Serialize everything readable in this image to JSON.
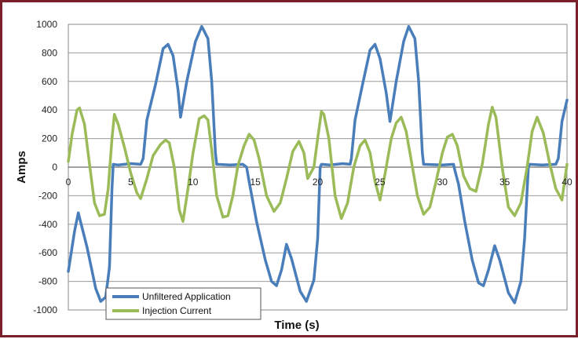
{
  "chart_data": {
    "type": "line",
    "title": "",
    "xlabel": "Time (s)",
    "ylabel": "Amps",
    "xlim": [
      0,
      40
    ],
    "ylim": [
      -1000,
      1000
    ],
    "x_ticks": [
      "0",
      "5",
      "10",
      "15",
      "20",
      "25",
      "30",
      "35",
      "40"
    ],
    "y_ticks": [
      "-1000",
      "-800",
      "-600",
      "-400",
      "-200",
      "0",
      "200",
      "400",
      "600",
      "800",
      "1000"
    ],
    "grid": "horizontal",
    "legend_position": "bottom-left",
    "series": [
      {
        "name": "Unfiltered Application",
        "color": "#4a7ebb",
        "points": [
          [
            0,
            -730
          ],
          [
            0.5,
            -450
          ],
          [
            0.8,
            -320
          ],
          [
            1.5,
            -560
          ],
          [
            2.2,
            -850
          ],
          [
            2.6,
            -940
          ],
          [
            3.0,
            -910
          ],
          [
            3.3,
            -700
          ],
          [
            3.5,
            -150
          ],
          [
            3.6,
            20
          ],
          [
            4,
            15
          ],
          [
            5,
            25
          ],
          [
            5.8,
            20
          ],
          [
            6.0,
            60
          ],
          [
            6.3,
            330
          ],
          [
            7,
            580
          ],
          [
            7.6,
            830
          ],
          [
            8.0,
            860
          ],
          [
            8.4,
            780
          ],
          [
            8.8,
            540
          ],
          [
            9.0,
            350
          ],
          [
            9.5,
            600
          ],
          [
            10.2,
            880
          ],
          [
            10.7,
            985
          ],
          [
            11.2,
            900
          ],
          [
            11.5,
            600
          ],
          [
            11.8,
            100
          ],
          [
            11.9,
            20
          ],
          [
            13,
            15
          ],
          [
            14,
            20
          ],
          [
            14.3,
            0
          ],
          [
            14.5,
            -100
          ],
          [
            15.1,
            -380
          ],
          [
            15.8,
            -650
          ],
          [
            16.3,
            -800
          ],
          [
            16.7,
            -830
          ],
          [
            17.1,
            -720
          ],
          [
            17.5,
            -540
          ],
          [
            17.9,
            -640
          ],
          [
            18.6,
            -870
          ],
          [
            19.1,
            -940
          ],
          [
            19.7,
            -790
          ],
          [
            20,
            -500
          ],
          [
            20.2,
            0
          ],
          [
            20.3,
            20
          ],
          [
            21,
            15
          ],
          [
            22,
            25
          ],
          [
            22.6,
            20
          ],
          [
            22.7,
            60
          ],
          [
            23,
            330
          ],
          [
            23.6,
            580
          ],
          [
            24.2,
            820
          ],
          [
            24.6,
            860
          ],
          [
            25.0,
            760
          ],
          [
            25.5,
            520
          ],
          [
            25.8,
            320
          ],
          [
            26.3,
            600
          ],
          [
            26.9,
            880
          ],
          [
            27.3,
            985
          ],
          [
            27.8,
            900
          ],
          [
            28.1,
            600
          ],
          [
            28.4,
            100
          ],
          [
            28.5,
            20
          ],
          [
            30,
            15
          ],
          [
            30.9,
            20
          ],
          [
            31.0,
            -20
          ],
          [
            31.3,
            -120
          ],
          [
            31.8,
            -380
          ],
          [
            32.4,
            -650
          ],
          [
            32.9,
            -810
          ],
          [
            33.3,
            -830
          ],
          [
            33.7,
            -720
          ],
          [
            34.2,
            -550
          ],
          [
            34.6,
            -650
          ],
          [
            35.3,
            -880
          ],
          [
            35.8,
            -950
          ],
          [
            36.3,
            -800
          ],
          [
            36.6,
            -500
          ],
          [
            36.9,
            0
          ],
          [
            37.0,
            20
          ],
          [
            38,
            15
          ],
          [
            39.1,
            20
          ],
          [
            39.3,
            60
          ],
          [
            39.6,
            320
          ],
          [
            40,
            470
          ]
        ]
      },
      {
        "name": "Injection Current",
        "color": "#9bbb59",
        "points": [
          [
            0,
            40
          ],
          [
            0.3,
            230
          ],
          [
            0.7,
            400
          ],
          [
            0.9,
            415
          ],
          [
            1.3,
            300
          ],
          [
            1.7,
            20
          ],
          [
            2.1,
            -250
          ],
          [
            2.5,
            -340
          ],
          [
            2.9,
            -330
          ],
          [
            3.2,
            -150
          ],
          [
            3.5,
            200
          ],
          [
            3.7,
            370
          ],
          [
            4.0,
            300
          ],
          [
            4.5,
            140
          ],
          [
            5.0,
            -40
          ],
          [
            5.5,
            -180
          ],
          [
            5.8,
            -220
          ],
          [
            6.3,
            -80
          ],
          [
            6.8,
            80
          ],
          [
            7.4,
            160
          ],
          [
            7.8,
            190
          ],
          [
            8.1,
            170
          ],
          [
            8.5,
            0
          ],
          [
            8.9,
            -300
          ],
          [
            9.2,
            -380
          ],
          [
            9.6,
            -150
          ],
          [
            10.0,
            100
          ],
          [
            10.5,
            340
          ],
          [
            10.9,
            360
          ],
          [
            11.2,
            330
          ],
          [
            11.5,
            120
          ],
          [
            11.9,
            -200
          ],
          [
            12.4,
            -350
          ],
          [
            12.8,
            -340
          ],
          [
            13.2,
            -200
          ],
          [
            13.6,
            10
          ],
          [
            14.1,
            150
          ],
          [
            14.5,
            230
          ],
          [
            14.9,
            190
          ],
          [
            15.3,
            60
          ],
          [
            15.9,
            -200
          ],
          [
            16.5,
            -310
          ],
          [
            17.0,
            -250
          ],
          [
            17.5,
            -80
          ],
          [
            18.0,
            110
          ],
          [
            18.5,
            180
          ],
          [
            18.9,
            100
          ],
          [
            19.2,
            -80
          ],
          [
            19.7,
            0
          ],
          [
            20.0,
            200
          ],
          [
            20.3,
            390
          ],
          [
            20.5,
            370
          ],
          [
            20.9,
            200
          ],
          [
            21.4,
            -200
          ],
          [
            21.9,
            -360
          ],
          [
            22.4,
            -250
          ],
          [
            22.9,
            0
          ],
          [
            23.4,
            150
          ],
          [
            23.8,
            190
          ],
          [
            24.2,
            100
          ],
          [
            24.6,
            -100
          ],
          [
            25.0,
            -230
          ],
          [
            25.4,
            -50
          ],
          [
            25.9,
            200
          ],
          [
            26.3,
            310
          ],
          [
            26.7,
            350
          ],
          [
            27.1,
            250
          ],
          [
            27.5,
            50
          ],
          [
            28.0,
            -200
          ],
          [
            28.5,
            -330
          ],
          [
            29.0,
            -280
          ],
          [
            29.5,
            -100
          ],
          [
            30.0,
            100
          ],
          [
            30.4,
            210
          ],
          [
            30.8,
            230
          ],
          [
            31.2,
            150
          ],
          [
            31.7,
            -60
          ],
          [
            32.2,
            -150
          ],
          [
            32.7,
            -170
          ],
          [
            33.2,
            20
          ],
          [
            33.7,
            300
          ],
          [
            34.0,
            420
          ],
          [
            34.3,
            350
          ],
          [
            34.8,
            0
          ],
          [
            35.3,
            -280
          ],
          [
            35.8,
            -340
          ],
          [
            36.3,
            -250
          ],
          [
            36.8,
            0
          ],
          [
            37.2,
            250
          ],
          [
            37.6,
            350
          ],
          [
            38.1,
            240
          ],
          [
            38.6,
            30
          ],
          [
            39.1,
            -150
          ],
          [
            39.6,
            -230
          ],
          [
            40,
            20
          ]
        ]
      }
    ]
  }
}
